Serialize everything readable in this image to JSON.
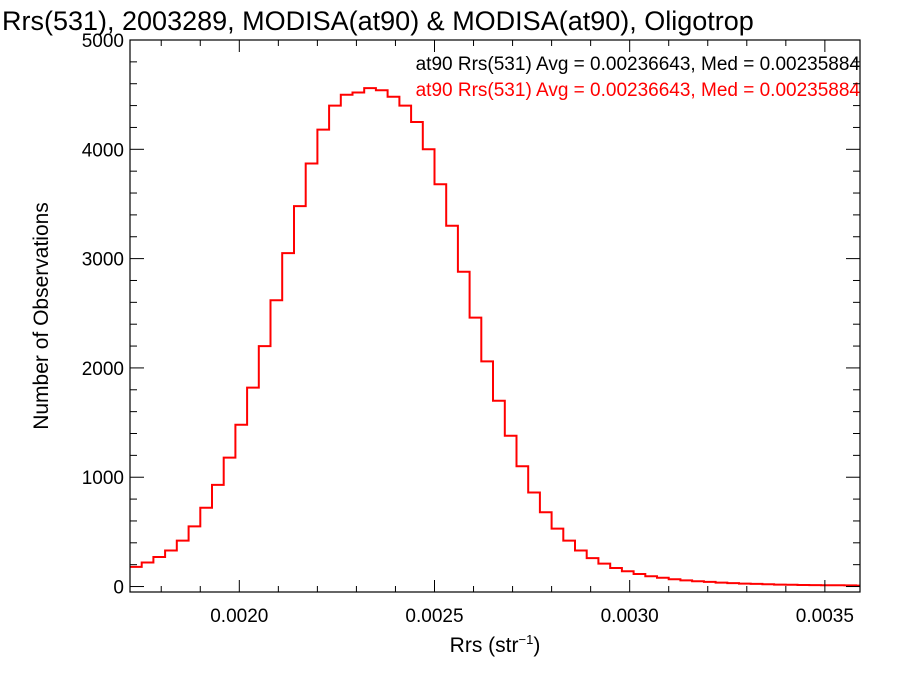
{
  "title": "Rrs(531), 2003289, MODISA(at90) & MODISA(at90), Oligotrop",
  "colors": {
    "series_black": "#000000",
    "series_red": "#ff0000",
    "axes": "#000000"
  },
  "chart_data": {
    "type": "line",
    "title": "Rrs(531), 2003289, MODISA(at90) & MODISA(at90), Oligotrop",
    "xlabel": "Rrs (str",
    "xlabel_sup": "−1",
    "xlabel_close": ")",
    "ylabel": "Number of Observations",
    "xlim": [
      0.00172,
      0.00359
    ],
    "ylim": [
      -50,
      5000
    ],
    "x_ticks": [
      {
        "value": 0.002,
        "label": "0.0020"
      },
      {
        "value": 0.0025,
        "label": "0.0025"
      },
      {
        "value": 0.003,
        "label": "0.0030"
      },
      {
        "value": 0.0035,
        "label": "0.0035"
      }
    ],
    "y_ticks": [
      {
        "value": 0,
        "label": "0"
      },
      {
        "value": 1000,
        "label": "1000"
      },
      {
        "value": 2000,
        "label": "2000"
      },
      {
        "value": 3000,
        "label": "3000"
      },
      {
        "value": 4000,
        "label": "4000"
      },
      {
        "value": 5000,
        "label": "5000"
      }
    ],
    "legend": [
      {
        "text": "at90 Rrs(531) Avg = 0.00236643, Med = 0.00235884",
        "color": "#000000"
      },
      {
        "text": "at90 Rrs(531) Avg = 0.00236643, Med = 0.00235884",
        "color": "#ff0000"
      }
    ],
    "legend_placement": "top-right",
    "series": [
      {
        "color": "#ff0000",
        "x": [
          0.00172,
          0.00175,
          0.00178,
          0.00181,
          0.00184,
          0.00187,
          0.0019,
          0.00193,
          0.00196,
          0.00199,
          0.00202,
          0.00205,
          0.00208,
          0.00211,
          0.00214,
          0.00217,
          0.0022,
          0.00223,
          0.00226,
          0.00229,
          0.00232,
          0.00235,
          0.00238,
          0.00241,
          0.00244,
          0.00247,
          0.0025,
          0.00253,
          0.00256,
          0.00259,
          0.00262,
          0.00265,
          0.00268,
          0.00271,
          0.00274,
          0.00277,
          0.0028,
          0.00283,
          0.00286,
          0.00289,
          0.00292,
          0.00295,
          0.00298,
          0.00301,
          0.00304,
          0.00307,
          0.0031,
          0.00313,
          0.00316,
          0.00319,
          0.00322,
          0.00325,
          0.00328,
          0.00331,
          0.00334,
          0.00337,
          0.0034,
          0.00343,
          0.00346,
          0.00349,
          0.00352,
          0.00355,
          0.00358
        ],
        "y": [
          180,
          220,
          270,
          330,
          420,
          550,
          720,
          930,
          1180,
          1480,
          1820,
          2200,
          2620,
          3050,
          3480,
          3870,
          4180,
          4400,
          4500,
          4520,
          4560,
          4540,
          4480,
          4400,
          4250,
          4000,
          3680,
          3300,
          2880,
          2460,
          2060,
          1700,
          1380,
          1100,
          860,
          680,
          530,
          420,
          330,
          260,
          210,
          170,
          140,
          115,
          95,
          80,
          66,
          56,
          48,
          42,
          36,
          31,
          27,
          24,
          21,
          18,
          16,
          14,
          13,
          12,
          11,
          10,
          9
        ]
      }
    ]
  }
}
